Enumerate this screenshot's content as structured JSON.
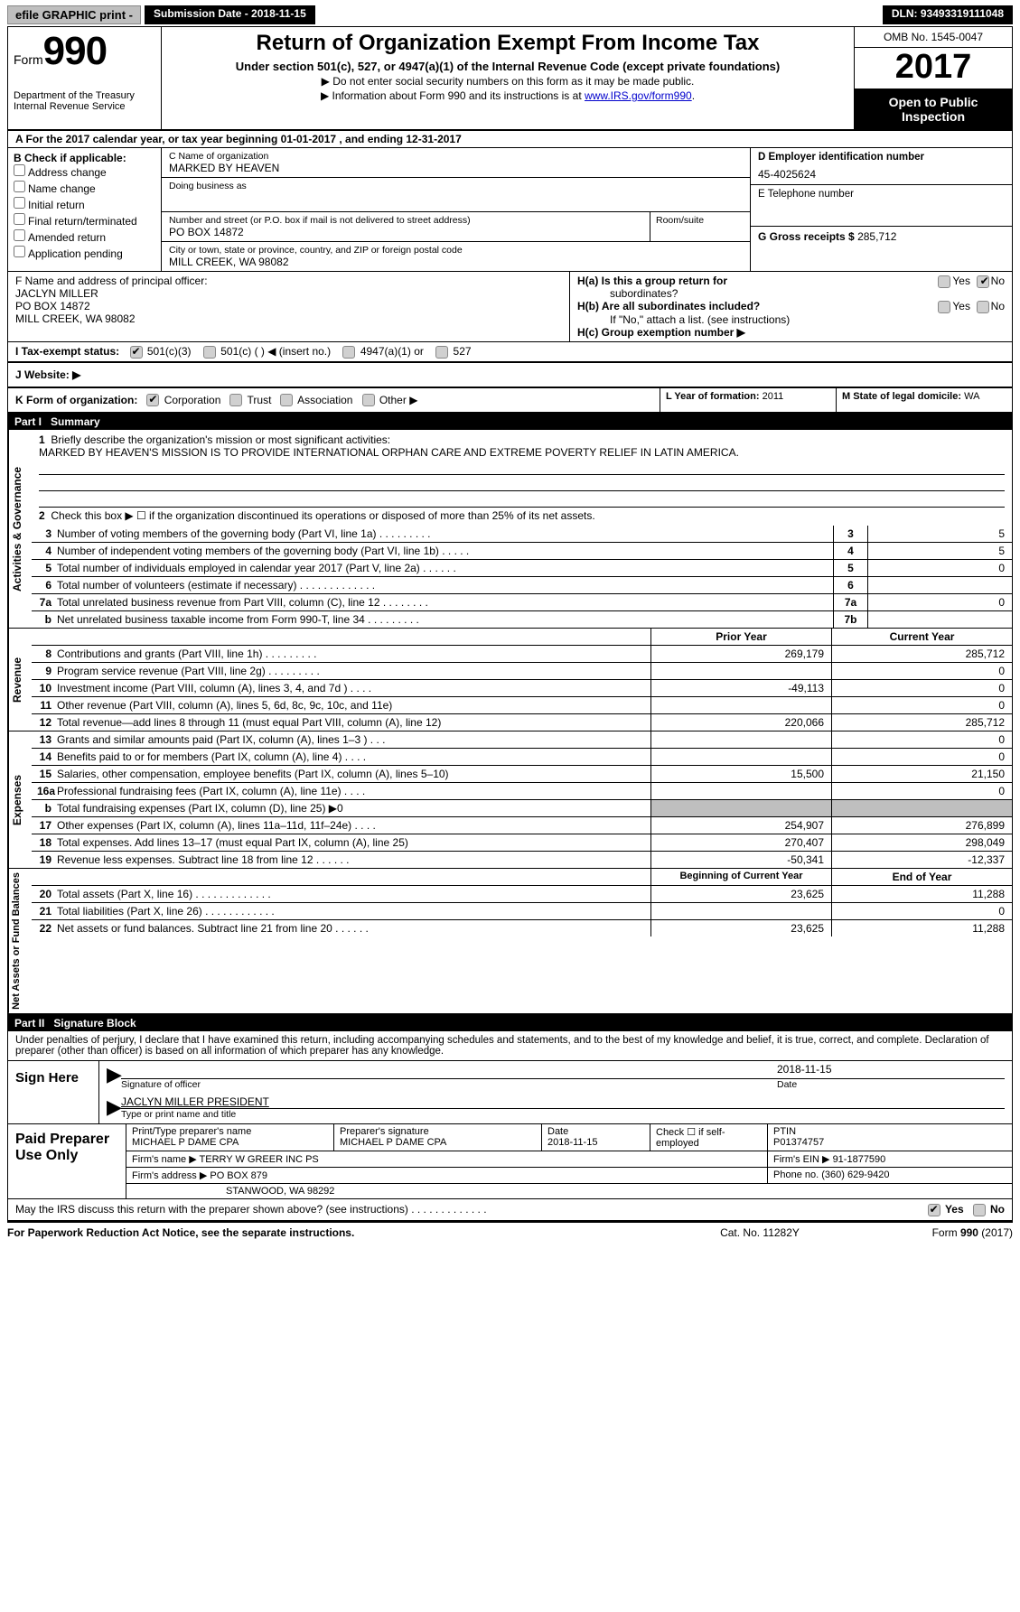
{
  "topbar": {
    "efile": "efile GRAPHIC print -",
    "subLabel": "Submission Date - ",
    "subDate": "2018-11-15",
    "dln": "DLN: 93493319111048"
  },
  "header": {
    "formWord": "Form",
    "formNum": "990",
    "dept1": "Department of the Treasury",
    "dept2": "Internal Revenue Service",
    "title": "Return of Organization Exempt From Income Tax",
    "sub": "Under section 501(c), 527, or 4947(a)(1) of the Internal Revenue Code (except private foundations)",
    "note1": "▶ Do not enter social security numbers on this form as it may be made public.",
    "note2a": "▶ Information about Form 990 and its instructions is at ",
    "note2link": "www.IRS.gov/form990",
    "omb": "OMB No. 1545-0047",
    "year": "2017",
    "pub": "Open to Public Inspection"
  },
  "A": "A   For the 2017 calendar year, or tax year beginning 01-01-2017   , and ending 12-31-2017",
  "B": {
    "title": "B Check if applicable:",
    "opts": [
      "Address change",
      "Name change",
      "Initial return",
      "Final return/terminated",
      "Amended return",
      "Application pending"
    ]
  },
  "C": {
    "nameLbl": "C Name of organization",
    "name": "MARKED BY HEAVEN",
    "dbaLbl": "Doing business as",
    "streetLbl": "Number and street (or P.O. box if mail is not delivered to street address)",
    "street": "PO BOX 14872",
    "roomLbl": "Room/suite",
    "cityLbl": "City or town, state or province, country, and ZIP or foreign postal code",
    "city": "MILL CREEK, WA  98082"
  },
  "D": {
    "lbl": "D Employer identification number",
    "val": "45-4025624"
  },
  "E": {
    "lbl": "E Telephone number",
    "val": ""
  },
  "G": {
    "lbl": "G Gross receipts $ ",
    "val": "285,712"
  },
  "F": {
    "lbl": "F  Name and address of principal officer:",
    "l1": "JACLYN MILLER",
    "l2": "PO BOX 14872",
    "l3": "MILL CREEK, WA  98082"
  },
  "H": {
    "a": "H(a)  Is this a group return for",
    "a2": "subordinates?",
    "b": "H(b)  Are all subordinates included?",
    "bnote": "If \"No,\" attach a list. (see instructions)",
    "c": "H(c)  Group exemption number ▶",
    "yes": "Yes",
    "no": "No"
  },
  "I": {
    "lbl": "I   Tax-exempt status:",
    "o1": "501(c)(3)",
    "o2": "501(c) (  ) ◀ (insert no.)",
    "o3": "4947(a)(1) or",
    "o4": "527"
  },
  "J": "J   Website: ▶",
  "K": {
    "lbl": "K Form of organization:",
    "o1": "Corporation",
    "o2": "Trust",
    "o3": "Association",
    "o4": "Other ▶"
  },
  "L": {
    "lbl": "L Year of formation:",
    "val": "2011"
  },
  "M": {
    "lbl": "M State of legal domicile:",
    "val": "WA"
  },
  "part1": {
    "bar": "Part I",
    "title": "Summary"
  },
  "gov": {
    "side": "Activities & Governance",
    "q1lbl": "1",
    "q1": "Briefly describe the organization's mission or most significant activities:",
    "mission": "MARKED BY HEAVEN'S MISSION IS TO PROVIDE INTERNATIONAL ORPHAN CARE AND EXTREME POVERTY RELIEF IN LATIN AMERICA.",
    "q2lbl": "2",
    "q2": "Check this box ▶  ☐  if the organization discontinued its operations or disposed of more than 25% of its net assets.",
    "rows": [
      {
        "n": "3",
        "t": "Number of voting members of the governing body (Part VI, line 1a)   .   .   .   .   .   .   .   .   .",
        "c": "3",
        "v": "5"
      },
      {
        "n": "4",
        "t": "Number of independent voting members of the governing body (Part VI, line 1b)    .   .   .   .   .",
        "c": "4",
        "v": "5"
      },
      {
        "n": "5",
        "t": "Total number of individuals employed in calendar year 2017 (Part V, line 2a)   .   .   .   .   .   .",
        "c": "5",
        "v": "0"
      },
      {
        "n": "6",
        "t": "Total number of volunteers (estimate if necessary)   .   .   .   .   .   .   .   .   .   .   .   .   .",
        "c": "6",
        "v": ""
      },
      {
        "n": "7a",
        "t": "Total unrelated business revenue from Part VIII, column (C), line 12   .   .   .   .   .   .   .   .",
        "c": "7a",
        "v": "0"
      },
      {
        "n": "b",
        "t": "Net unrelated business taxable income from Form 990-T, line 34   .   .   .   .   .   .   .   .   .",
        "c": "7b",
        "v": ""
      }
    ]
  },
  "rev": {
    "side": "Revenue",
    "hdrP": "Prior Year",
    "hdrC": "Current Year",
    "rows": [
      {
        "n": "8",
        "t": "Contributions and grants (Part VIII, line 1h)   .   .   .   .   .   .   .   .   .",
        "p": "269,179",
        "c": "285,712"
      },
      {
        "n": "9",
        "t": "Program service revenue (Part VIII, line 2g)   .   .   .   .   .   .   .   .   .",
        "p": "",
        "c": "0"
      },
      {
        "n": "10",
        "t": "Investment income (Part VIII, column (A), lines 3, 4, and 7d )   .   .   .   .",
        "p": "-49,113",
        "c": "0"
      },
      {
        "n": "11",
        "t": "Other revenue (Part VIII, column (A), lines 5, 6d, 8c, 9c, 10c, and 11e)",
        "p": "",
        "c": "0"
      },
      {
        "n": "12",
        "t": "Total revenue—add lines 8 through 11 (must equal Part VIII, column (A), line 12)",
        "p": "220,066",
        "c": "285,712"
      }
    ]
  },
  "exp": {
    "side": "Expenses",
    "rows": [
      {
        "n": "13",
        "t": "Grants and similar amounts paid (Part IX, column (A), lines 1–3 )   .   .   .",
        "p": "",
        "c": "0"
      },
      {
        "n": "14",
        "t": "Benefits paid to or for members (Part IX, column (A), line 4)   .   .   .   .",
        "p": "",
        "c": "0"
      },
      {
        "n": "15",
        "t": "Salaries, other compensation, employee benefits (Part IX, column (A), lines 5–10)",
        "p": "15,500",
        "c": "21,150"
      },
      {
        "n": "16a",
        "t": "Professional fundraising fees (Part IX, column (A), line 11e)   .   .   .   .",
        "p": "",
        "c": "0"
      },
      {
        "n": "b",
        "t": "Total fundraising expenses (Part IX, column (D), line 25) ▶0",
        "p": "gray",
        "c": "gray"
      },
      {
        "n": "17",
        "t": "Other expenses (Part IX, column (A), lines 11a–11d, 11f–24e)   .   .   .   .",
        "p": "254,907",
        "c": "276,899"
      },
      {
        "n": "18",
        "t": "Total expenses. Add lines 13–17 (must equal Part IX, column (A), line 25)",
        "p": "270,407",
        "c": "298,049"
      },
      {
        "n": "19",
        "t": "Revenue less expenses. Subtract line 18 from line 12   .   .   .   .   .   .",
        "p": "-50,341",
        "c": "-12,337"
      }
    ]
  },
  "net": {
    "side": "Net Assets or Fund Balances",
    "hdrP": "Beginning of Current Year",
    "hdrC": "End of Year",
    "rows": [
      {
        "n": "20",
        "t": "Total assets (Part X, line 16)   .   .   .   .   .   .   .   .   .   .   .   .   .",
        "p": "23,625",
        "c": "11,288"
      },
      {
        "n": "21",
        "t": "Total liabilities (Part X, line 26)   .   .   .   .   .   .   .   .   .   .   .   .",
        "p": "",
        "c": "0"
      },
      {
        "n": "22",
        "t": "Net assets or fund balances. Subtract line 21 from line 20 .   .   .   .   .   .",
        "p": "23,625",
        "c": "11,288"
      }
    ]
  },
  "part2": {
    "bar": "Part II",
    "title": "Signature Block"
  },
  "sig": {
    "decl": "Under penalties of perjury, I declare that I have examined this return, including accompanying schedules and statements, and to the best of my knowledge and belief, it is true, correct, and complete. Declaration of preparer (other than officer) is based on all information of which preparer has any knowledge.",
    "signHere": "Sign Here",
    "date": "2018-11-15",
    "lblSig": "Signature of officer",
    "lblDate": "Date",
    "name": "JACLYN MILLER PRESIDENT",
    "lblName": "Type or print name and title"
  },
  "paid": {
    "title": "Paid Preparer Use Only",
    "pnameLbl": "Print/Type preparer's name",
    "pname": "MICHAEL P DAME CPA",
    "psigLbl": "Preparer's signature",
    "psig": "MICHAEL P DAME CPA",
    "pdateLbl": "Date",
    "pdate": "2018-11-15",
    "selfLbl": "Check ☐ if self-employed",
    "ptinLbl": "PTIN",
    "ptin": "P01374757",
    "firmLbl": "Firm's name    ▶",
    "firm": "TERRY W GREER INC PS",
    "einLbl": "Firm's EIN ▶",
    "ein": "91-1877590",
    "addrLbl": "Firm's address ▶",
    "addr1": "PO BOX 879",
    "addr2": "STANWOOD, WA  98292",
    "phoneLbl": "Phone no.",
    "phone": "(360) 629-9420"
  },
  "discuss": {
    "q": "May the IRS discuss this return with the preparer shown above? (see instructions)   .   .   .   .   .   .   .   .   .   .   .   .   .",
    "yes": "Yes",
    "no": "No"
  },
  "footer": {
    "pra": "For Paperwork Reduction Act Notice, see the separate instructions.",
    "cat": "Cat. No. 11282Y",
    "form": "Form 990 (2017)"
  },
  "colors": {
    "black": "#000000",
    "gray": "#bfbfbf",
    "link": "#0000cc"
  }
}
